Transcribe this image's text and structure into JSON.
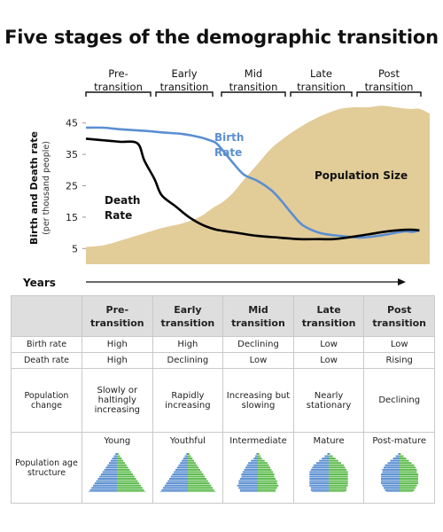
{
  "title": "Five stages of the demographic transition",
  "stages": [
    {
      "label": "Pre-\ntransition",
      "birth_rate": "High",
      "death_rate": "High",
      "population_change": "Slowly or haltingly increasing",
      "age_structure": "Young"
    },
    {
      "label": "Early\ntransition",
      "birth_rate": "High",
      "death_rate": "Declining",
      "population_change": "Rapidly increasing",
      "age_structure": "Youthful"
    },
    {
      "label": "Mid\ntransition",
      "birth_rate": "Declining",
      "death_rate": "Low",
      "population_change": "Increasing but slowing",
      "age_structure": "Intermediate"
    },
    {
      "label": "Late\ntransition",
      "birth_rate": "Low",
      "death_rate": "Low",
      "population_change": "Nearly stationary",
      "age_structure": "Mature"
    },
    {
      "label": "Post\ntransition",
      "birth_rate": "Low",
      "death_rate": "Rising",
      "population_change": "Declining",
      "age_structure": "Post-mature"
    }
  ],
  "table": {
    "row_labels": {
      "birth_rate": "Birth rate",
      "death_rate": "Death rate",
      "population_change": "Population change",
      "age_structure": "Population age structure"
    }
  },
  "chart_data": {
    "type": "line",
    "ylabel": "Birth and Death rate",
    "ylabel_sub": "(per thousand people)",
    "xlabel": "Years",
    "yticks": [
      5,
      15,
      25,
      35,
      45
    ],
    "ylim": [
      0,
      50
    ],
    "xlim": [
      0,
      100
    ],
    "series": [
      {
        "name": "Birth Rate",
        "color": "#5b8fd1",
        "x": [
          0,
          5,
          10,
          17,
          22,
          28,
          33,
          36,
          38,
          40,
          43,
          46,
          50,
          54,
          57,
          60,
          63,
          68,
          74,
          80,
          86,
          90,
          93,
          95,
          97
        ],
        "y": [
          43.5,
          43.5,
          43,
          42.5,
          42,
          41.5,
          40.5,
          39.5,
          38.5,
          36,
          32,
          28.5,
          26.5,
          23.5,
          20,
          16,
          12.5,
          10,
          9,
          8.5,
          9.2,
          10,
          10.5,
          10.3,
          10.8
        ]
      },
      {
        "name": "Death Rate",
        "color": "#000000",
        "x": [
          0,
          5,
          10,
          15,
          17,
          20,
          22,
          26,
          30,
          34,
          38,
          44,
          50,
          56,
          62,
          68,
          72,
          76,
          82,
          88,
          94,
          97
        ],
        "y": [
          40,
          39.5,
          39,
          38.5,
          33,
          27,
          22,
          18.5,
          15,
          12.5,
          11,
          10,
          9,
          8.5,
          8,
          8,
          8,
          8.5,
          9.5,
          10.5,
          11,
          10.8
        ]
      },
      {
        "name": "Population Size",
        "color": "#e2cc98",
        "x": [
          0,
          5,
          10,
          16,
          22,
          28,
          33,
          37,
          40,
          43,
          46,
          50,
          54,
          58,
          62,
          66,
          70,
          74,
          78,
          82,
          86,
          90,
          94,
          97,
          100
        ],
        "y": [
          5.5,
          6,
          7.5,
          9.5,
          11.5,
          13,
          15,
          18,
          20,
          23,
          27,
          32,
          37,
          40.5,
          43.5,
          46,
          48,
          49.5,
          50,
          50,
          50.5,
          50,
          49.5,
          49.5,
          48
        ]
      }
    ],
    "annotations": {
      "birth": "Birth\nRate",
      "death": "Death\nRate",
      "population": "Population Size"
    },
    "colors": {
      "birth": "#5b8fd1",
      "death": "#000000",
      "population": "#e2cc98",
      "pyramid_male": "#5b8fd1",
      "pyramid_female": "#5dbb4d"
    }
  }
}
